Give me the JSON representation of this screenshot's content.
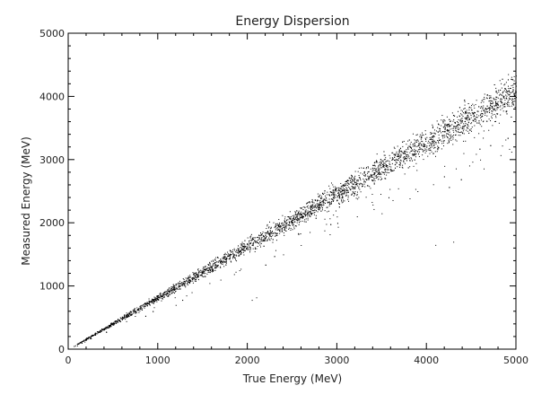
{
  "chart_data": {
    "type": "scatter",
    "title": "Energy Dispersion",
    "xlabel": "True Energy (MeV)",
    "ylabel": "Measured Energy (MeV)",
    "xlim": [
      0,
      5000
    ],
    "ylim": [
      0,
      5000
    ],
    "x_ticks": [
      "0",
      "1000",
      "2000",
      "3000",
      "4000",
      "5000"
    ],
    "y_ticks": [
      "0",
      "1000",
      "2000",
      "3000",
      "4000",
      "5000"
    ],
    "grid": false,
    "legend": "none",
    "point_color": "#000000",
    "trend": {
      "description_free": true,
      "slope": 0.82,
      "relative_spread": 0.035,
      "x_range": [
        60,
        5000
      ]
    },
    "points": [
      [
        100,
        60
      ],
      [
        150,
        100
      ],
      [
        200,
        150
      ],
      [
        250,
        190
      ],
      [
        300,
        230
      ],
      [
        350,
        270
      ],
      [
        400,
        310
      ],
      [
        450,
        350
      ],
      [
        500,
        390
      ],
      [
        550,
        430
      ],
      [
        600,
        470
      ],
      [
        650,
        510
      ],
      [
        700,
        560
      ],
      [
        750,
        600
      ],
      [
        800,
        640
      ],
      [
        850,
        680
      ],
      [
        900,
        720
      ],
      [
        950,
        760
      ],
      [
        1000,
        800
      ],
      [
        1050,
        840
      ],
      [
        1100,
        880
      ],
      [
        1150,
        920
      ],
      [
        1200,
        960
      ],
      [
        1250,
        1010
      ],
      [
        1300,
        1050
      ],
      [
        1350,
        1090
      ],
      [
        1400,
        1130
      ],
      [
        1450,
        1170
      ],
      [
        1500,
        1210
      ],
      [
        1550,
        1250
      ],
      [
        1600,
        1290
      ],
      [
        1650,
        1330
      ],
      [
        1700,
        1370
      ],
      [
        1750,
        1420
      ],
      [
        1800,
        1450
      ],
      [
        1850,
        1490
      ],
      [
        1900,
        1530
      ],
      [
        1950,
        1570
      ],
      [
        2000,
        1610
      ],
      [
        2050,
        1650
      ],
      [
        2100,
        1690
      ],
      [
        2150,
        1730
      ],
      [
        2200,
        1770
      ],
      [
        2250,
        1810
      ],
      [
        2300,
        1850
      ],
      [
        2350,
        1890
      ],
      [
        2400,
        1930
      ],
      [
        2450,
        1970
      ],
      [
        2500,
        2010
      ],
      [
        2550,
        2050
      ],
      [
        2600,
        2090
      ],
      [
        2650,
        2130
      ],
      [
        2700,
        2170
      ],
      [
        2750,
        2210
      ],
      [
        2800,
        2250
      ],
      [
        2850,
        2290
      ],
      [
        2900,
        2330
      ],
      [
        2950,
        2370
      ],
      [
        3000,
        2410
      ],
      [
        3050,
        2450
      ],
      [
        3100,
        2490
      ],
      [
        3150,
        2530
      ],
      [
        3200,
        2570
      ],
      [
        3250,
        2610
      ],
      [
        3300,
        2650
      ],
      [
        3350,
        2690
      ],
      [
        3400,
        2730
      ],
      [
        3450,
        2770
      ],
      [
        3500,
        2810
      ],
      [
        3550,
        2850
      ],
      [
        3600,
        2890
      ],
      [
        3650,
        2930
      ],
      [
        3700,
        2970
      ],
      [
        3750,
        3010
      ],
      [
        3800,
        3050
      ],
      [
        3850,
        3090
      ],
      [
        3900,
        3130
      ],
      [
        3950,
        3170
      ],
      [
        4000,
        3200
      ],
      [
        4050,
        3240
      ],
      [
        4100,
        3280
      ],
      [
        4150,
        3320
      ],
      [
        4200,
        3360
      ],
      [
        4250,
        3400
      ],
      [
        4300,
        3440
      ],
      [
        4350,
        3480
      ],
      [
        4400,
        3520
      ],
      [
        4450,
        3560
      ],
      [
        4500,
        3590
      ],
      [
        4550,
        3630
      ],
      [
        4600,
        3670
      ],
      [
        4650,
        3710
      ],
      [
        4700,
        3750
      ],
      [
        4750,
        3790
      ],
      [
        4800,
        3830
      ],
      [
        4850,
        3870
      ],
      [
        4900,
        3910
      ],
      [
        4950,
        3950
      ],
      [
        5000,
        3990
      ],
      [
        2050,
        780
      ],
      [
        2100,
        820
      ],
      [
        4100,
        1650
      ],
      [
        4300,
        1700
      ],
      [
        3500,
        2150
      ],
      [
        3900,
        2500
      ],
      [
        4200,
        2900
      ],
      [
        4600,
        3000
      ],
      [
        3000,
        2100
      ],
      [
        2500,
        1900
      ],
      [
        1200,
        700
      ],
      [
        1700,
        1100
      ]
    ]
  }
}
